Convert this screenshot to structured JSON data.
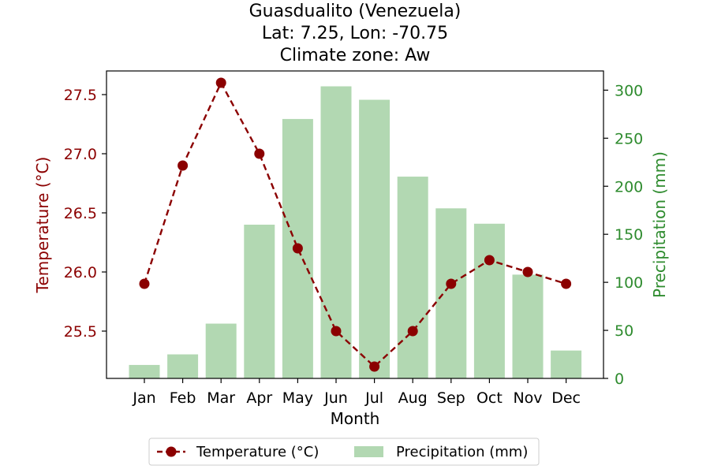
{
  "chart_data": {
    "type": "bar+line",
    "title_lines": [
      "Guasdualito (Venezuela)",
      "Lat: 7.25, Lon: -70.75",
      "Climate zone: Aw"
    ],
    "xlabel": "Month",
    "categories": [
      "Jan",
      "Feb",
      "Mar",
      "Apr",
      "May",
      "Jun",
      "Jul",
      "Aug",
      "Sep",
      "Oct",
      "Nov",
      "Dec"
    ],
    "temperature": {
      "name": "Temperature (°C)",
      "axis_label": "Temperature (°C)",
      "values": [
        25.9,
        26.9,
        27.6,
        27.0,
        26.2,
        25.5,
        25.2,
        25.5,
        25.9,
        26.1,
        26.0,
        25.9
      ],
      "ylim": [
        25.1,
        27.7
      ],
      "ticks": [
        25.5,
        26.0,
        26.5,
        27.0,
        27.5
      ],
      "tick_labels": [
        "25.5",
        "26.0",
        "26.5",
        "27.0",
        "27.5"
      ],
      "color": "#8b0000",
      "style": "dashed line with circle markers"
    },
    "precipitation": {
      "name": "Precipitation (mm)",
      "axis_label": "Precipitation (mm)",
      "values": [
        14,
        25,
        57,
        160,
        270,
        304,
        290,
        210,
        177,
        161,
        108,
        29
      ],
      "ylim": [
        0,
        320
      ],
      "ticks": [
        0,
        50,
        100,
        150,
        200,
        250,
        300
      ],
      "tick_labels": [
        "0",
        "50",
        "100",
        "150",
        "200",
        "250",
        "300"
      ],
      "color": "#2e8b2e",
      "bar_color": "#b2d8b2"
    },
    "legend": {
      "placement": "bottom-center",
      "entries": [
        "Temperature (°C)",
        "Precipitation (mm)"
      ]
    },
    "grid": false
  }
}
